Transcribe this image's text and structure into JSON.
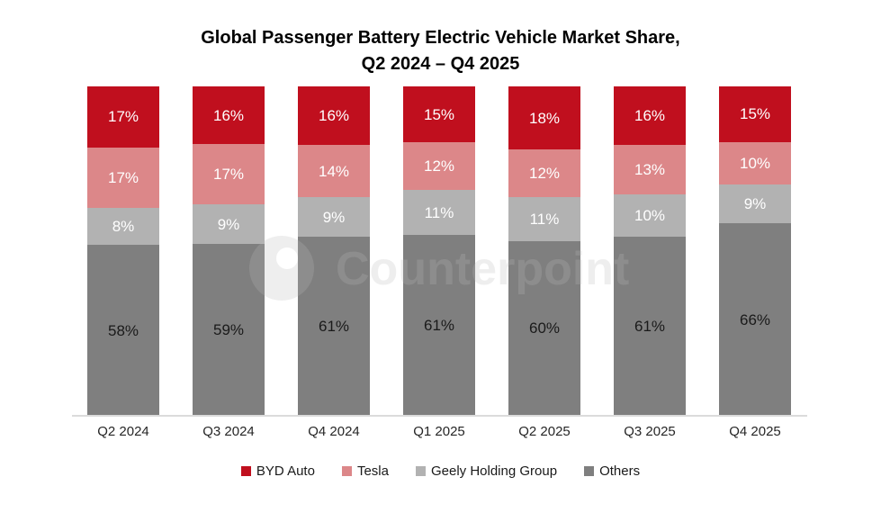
{
  "title": {
    "line1": "Global Passenger Battery Electric Vehicle Market Share,",
    "line2": "Q2 2024 – Q4 2025"
  },
  "watermark": {
    "text": "Counterpoint"
  },
  "colors": {
    "byd_auto": "#C00F1E",
    "tesla": "#DC8789",
    "geely_holding_group": "#B2B2B2",
    "others": "#7F7F7F",
    "axis_line": "#DBDBDB"
  },
  "chart_data": {
    "type": "bar",
    "stacked": true,
    "normalized_to_100": true,
    "title": "Global Passenger Battery Electric Vehicle Market Share, Q2 2024 – Q4 2025",
    "xlabel": "",
    "ylabel": "",
    "ylim": [
      0,
      100
    ],
    "grid": false,
    "legend_position": "bottom",
    "value_suffix": "%",
    "categories": [
      "Q2 2024",
      "Q3 2024",
      "Q4 2024",
      "Q1 2025",
      "Q2 2025",
      "Q3 2025",
      "Q4 2025"
    ],
    "series": [
      {
        "name": "BYD Auto",
        "color": "#C00F1E",
        "label_color": "#FFFFFF",
        "values": [
          17,
          16,
          16,
          15,
          18,
          16,
          15
        ]
      },
      {
        "name": "Tesla",
        "color": "#DC8789",
        "label_color": "#FFFFFF",
        "values": [
          17,
          17,
          14,
          12,
          12,
          13,
          10
        ]
      },
      {
        "name": "Geely Holding Group",
        "color": "#B2B2B2",
        "label_color": "#FFFFFF",
        "values": [
          8,
          9,
          9,
          11,
          11,
          10,
          9
        ]
      },
      {
        "name": "Others",
        "color": "#7F7F7F",
        "label_color": "#1A1A1A",
        "values": [
          58,
          59,
          61,
          61,
          60,
          61,
          66
        ]
      }
    ]
  }
}
